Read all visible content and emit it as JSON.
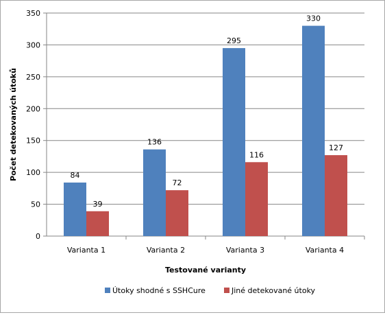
{
  "chart_data": {
    "type": "bar",
    "categories": [
      "Varianta 1",
      "Varianta 2",
      "Varianta 3",
      "Varianta 4"
    ],
    "series": [
      {
        "name": "Útoky shodné s SSHCure",
        "color": "#4F81BD",
        "values": [
          84,
          136,
          295,
          330
        ]
      },
      {
        "name": "Jiné detekované útoky",
        "color": "#C0504D",
        "values": [
          39,
          72,
          116,
          127
        ]
      }
    ],
    "title": "",
    "xlabel": "Testované varianty",
    "ylabel": "Počet detekovaných útoků",
    "ylim": [
      0,
      350
    ],
    "yticks": [
      0,
      50,
      100,
      150,
      200,
      250,
      300,
      350
    ],
    "grid": true,
    "legend": "bottom"
  }
}
